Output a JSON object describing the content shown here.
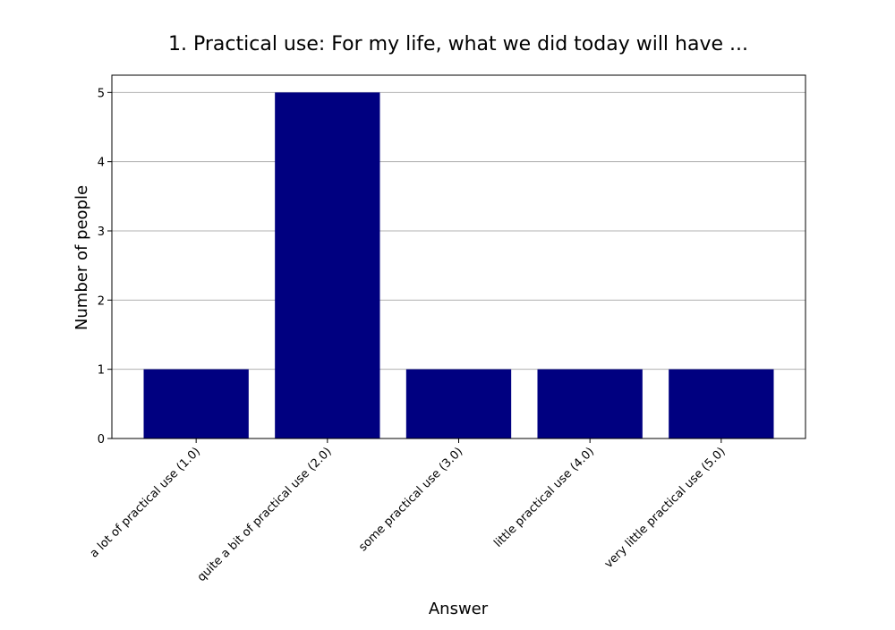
{
  "chart_data": {
    "type": "bar",
    "title": "1. Practical use: For my life, what we did today will have ...",
    "xlabel": "Answer",
    "ylabel": "Number of people",
    "categories": [
      "a lot of practical use (1.0)",
      "quite a bit of practical use (2.0)",
      "some practical use (3.0)",
      "little practical use (4.0)",
      "very little practical use (5.0)"
    ],
    "values": [
      1,
      5,
      1,
      1,
      1
    ],
    "ylim": [
      0,
      5.25
    ],
    "yticks": [
      0,
      1,
      2,
      3,
      4,
      5
    ],
    "grid": "horizontal",
    "legend": "none",
    "bar_color": "#000080",
    "grid_color": "#b0b0b0"
  }
}
